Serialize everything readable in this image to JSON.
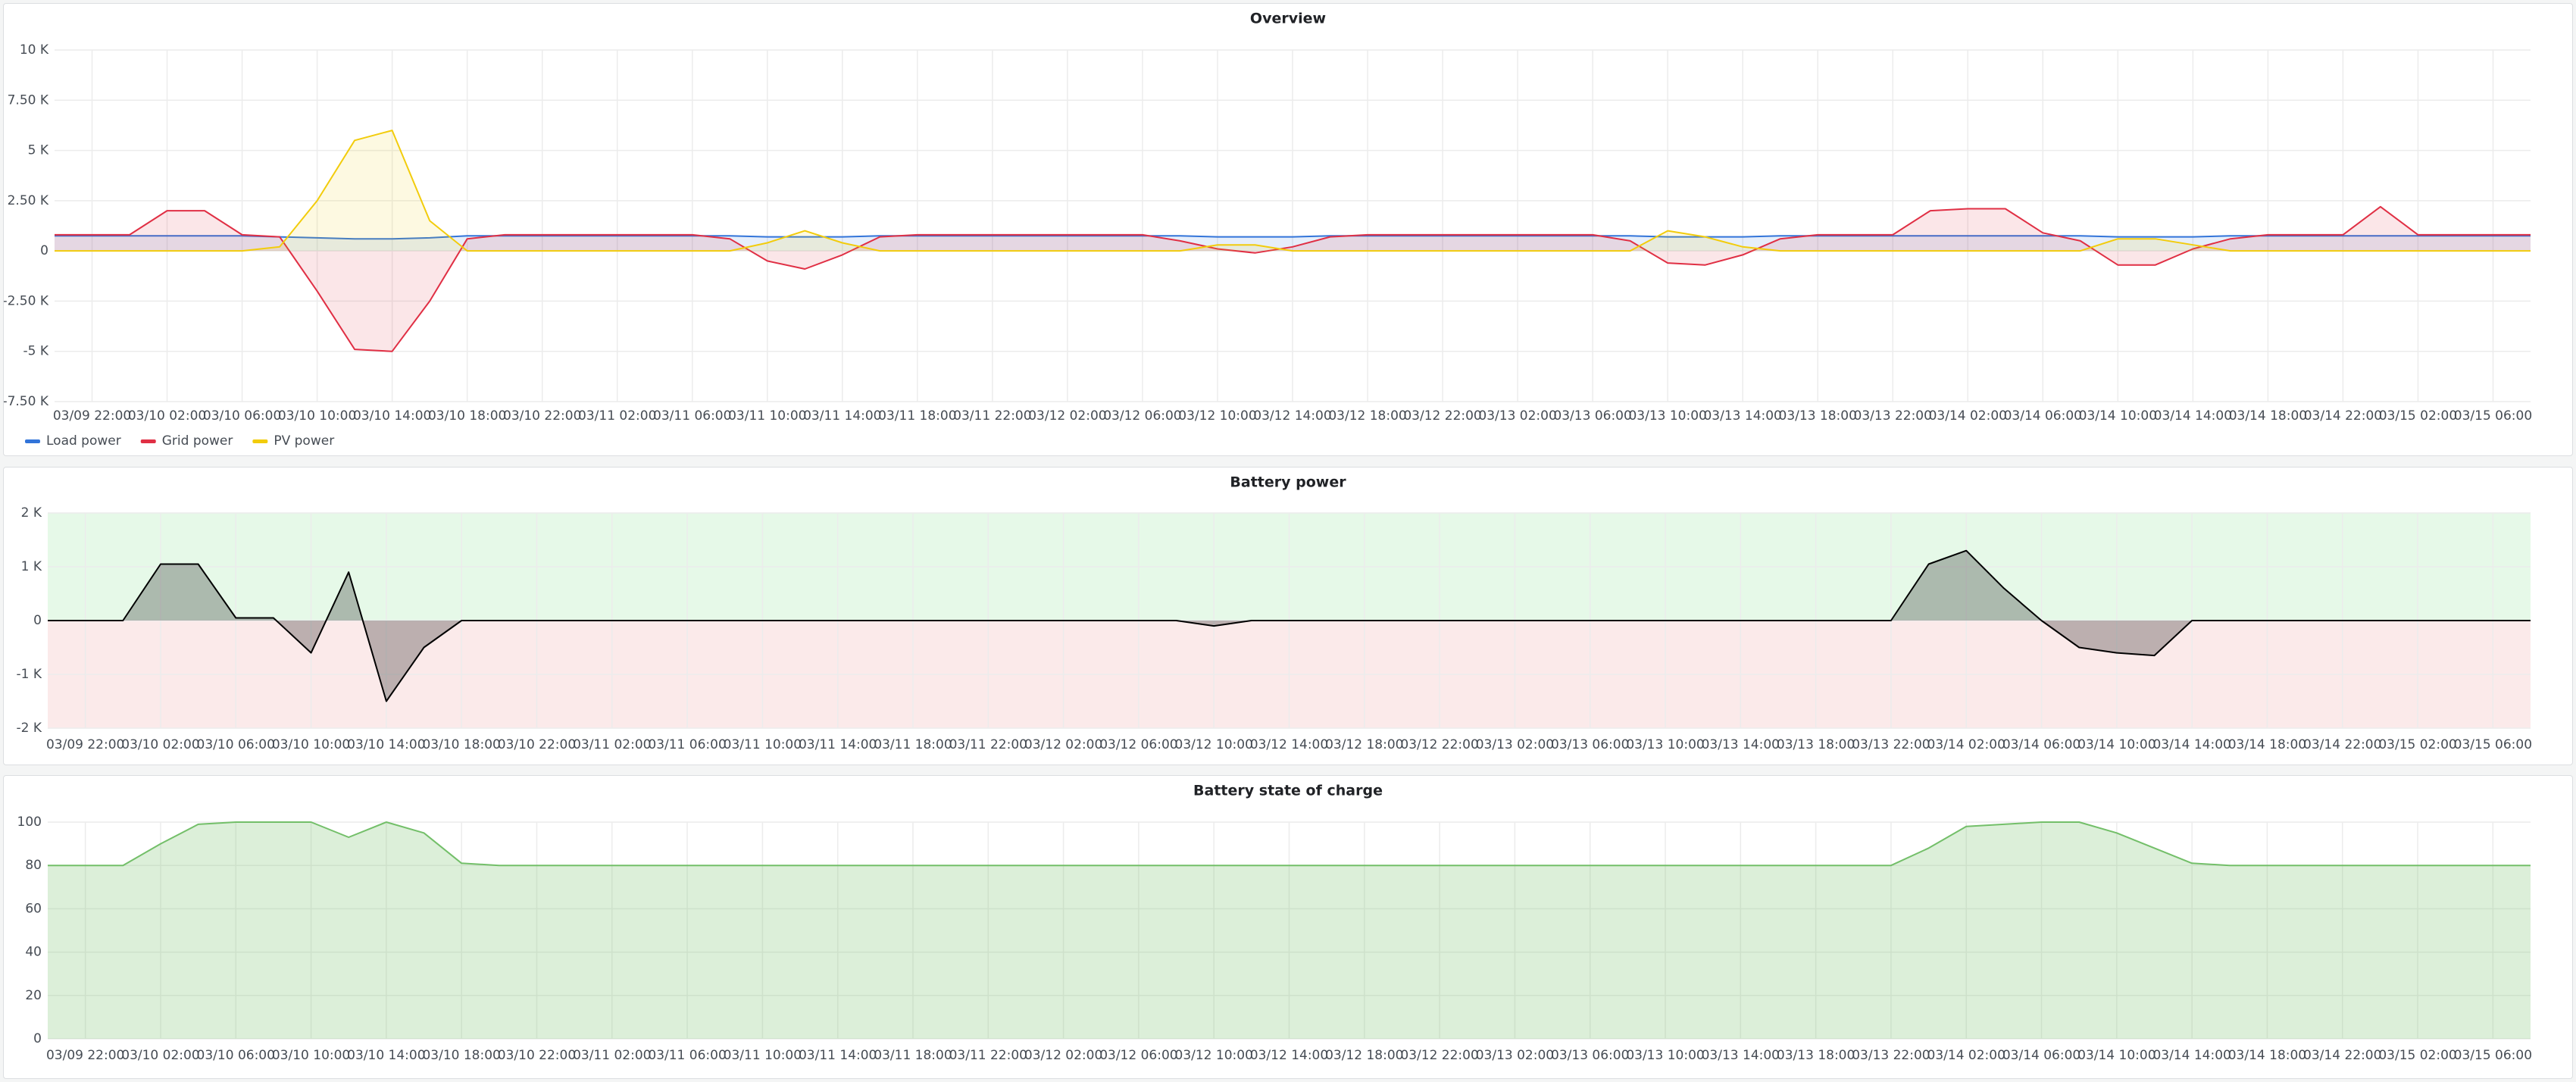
{
  "chart_data": [
    {
      "type": "area",
      "title": "Overview",
      "x": [
        "03/09 20:00",
        "03/09 22:00",
        "03/10 00:00",
        "03/10 02:00",
        "03/10 04:00",
        "03/10 06:00",
        "03/10 08:00",
        "03/10 10:00",
        "03/10 12:00",
        "03/10 14:00",
        "03/10 16:00",
        "03/10 18:00",
        "03/10 20:00",
        "03/10 22:00",
        "03/11 00:00",
        "03/11 02:00",
        "03/11 04:00",
        "03/11 06:00",
        "03/11 08:00",
        "03/11 10:00",
        "03/11 12:00",
        "03/11 14:00",
        "03/11 16:00",
        "03/11 18:00",
        "03/11 20:00",
        "03/11 22:00",
        "03/12 00:00",
        "03/12 02:00",
        "03/12 04:00",
        "03/12 06:00",
        "03/12 08:00",
        "03/12 10:00",
        "03/12 12:00",
        "03/12 14:00",
        "03/12 16:00",
        "03/12 18:00",
        "03/12 20:00",
        "03/12 22:00",
        "03/13 00:00",
        "03/13 02:00",
        "03/13 04:00",
        "03/13 06:00",
        "03/13 08:00",
        "03/13 10:00",
        "03/13 12:00",
        "03/13 14:00",
        "03/13 16:00",
        "03/13 18:00",
        "03/13 20:00",
        "03/13 22:00",
        "03/14 00:00",
        "03/14 02:00",
        "03/14 04:00",
        "03/14 06:00",
        "03/14 08:00",
        "03/14 10:00",
        "03/14 12:00",
        "03/14 14:00",
        "03/14 16:00",
        "03/14 18:00",
        "03/14 20:00",
        "03/14 22:00",
        "03/15 00:00",
        "03/15 02:00",
        "03/15 04:00",
        "03/15 06:00",
        "03/15 08:00"
      ],
      "xticks": [
        "03/09 22:00",
        "03/10 02:00",
        "03/10 06:00",
        "03/10 10:00",
        "03/10 14:00",
        "03/10 18:00",
        "03/10 22:00",
        "03/11 02:00",
        "03/11 06:00",
        "03/11 10:00",
        "03/11 14:00",
        "03/11 18:00",
        "03/11 22:00",
        "03/12 02:00",
        "03/12 06:00",
        "03/12 10:00",
        "03/12 14:00",
        "03/12 18:00",
        "03/12 22:00",
        "03/13 02:00",
        "03/13 06:00",
        "03/13 10:00",
        "03/13 14:00",
        "03/13 18:00",
        "03/13 22:00",
        "03/14 02:00",
        "03/14 06:00",
        "03/14 10:00",
        "03/14 14:00",
        "03/14 18:00",
        "03/14 22:00",
        "03/15 02:00",
        "03/15 06:00"
      ],
      "ylim": [
        -7500,
        10000
      ],
      "yticks": [
        {
          "value": 10000,
          "label": "10 K"
        },
        {
          "value": 7500,
          "label": "7.50 K"
        },
        {
          "value": 5000,
          "label": "5 K"
        },
        {
          "value": 2500,
          "label": "2.50 K"
        },
        0,
        {
          "value": -2500,
          "label": "-2.50 K"
        },
        {
          "value": -5000,
          "label": "-5 K"
        },
        {
          "value": -7500,
          "label": "-7.50 K"
        }
      ],
      "grid": true,
      "legend": "bottom-left",
      "fill_opacity": 0.12,
      "series": [
        {
          "name": "Load power",
          "color": "#3274d9",
          "values": [
            750,
            750,
            750,
            750,
            750,
            750,
            700,
            650,
            600,
            600,
            650,
            750,
            750,
            750,
            750,
            750,
            750,
            750,
            750,
            700,
            700,
            700,
            750,
            750,
            750,
            750,
            750,
            750,
            750,
            750,
            750,
            700,
            700,
            700,
            750,
            750,
            750,
            750,
            750,
            750,
            750,
            750,
            750,
            700,
            700,
            700,
            750,
            750,
            750,
            750,
            750,
            750,
            750,
            750,
            750,
            700,
            700,
            700,
            750,
            750,
            750,
            750,
            750,
            750,
            750,
            750,
            750
          ]
        },
        {
          "name": "Grid power",
          "color": "#e02f44",
          "values": [
            800,
            800,
            800,
            2000,
            2000,
            800,
            700,
            -2000,
            -4900,
            -5000,
            -2500,
            600,
            800,
            800,
            800,
            800,
            800,
            800,
            600,
            -500,
            -900,
            -200,
            700,
            800,
            800,
            800,
            800,
            800,
            800,
            800,
            500,
            100,
            -100,
            200,
            700,
            800,
            800,
            800,
            800,
            800,
            800,
            800,
            500,
            -600,
            -700,
            -200,
            600,
            800,
            800,
            800,
            2000,
            2100,
            2100,
            900,
            500,
            -700,
            -700,
            100,
            600,
            800,
            800,
            800,
            2200,
            800,
            800,
            800,
            800
          ]
        },
        {
          "name": "PV power",
          "color": "#f2cc0c",
          "values": [
            0,
            0,
            0,
            0,
            0,
            0,
            200,
            2500,
            5500,
            6000,
            1500,
            0,
            0,
            0,
            0,
            0,
            0,
            0,
            0,
            400,
            1000,
            400,
            0,
            0,
            0,
            0,
            0,
            0,
            0,
            0,
            0,
            300,
            300,
            0,
            0,
            0,
            0,
            0,
            0,
            0,
            0,
            0,
            0,
            1000,
            700,
            200,
            0,
            0,
            0,
            0,
            0,
            0,
            0,
            0,
            0,
            600,
            600,
            300,
            0,
            0,
            0,
            0,
            0,
            0,
            0,
            0,
            0
          ]
        }
      ]
    },
    {
      "type": "area",
      "title": "Battery power",
      "x": [
        "03/09 20:00",
        "03/09 22:00",
        "03/10 00:00",
        "03/10 02:00",
        "03/10 04:00",
        "03/10 06:00",
        "03/10 08:00",
        "03/10 10:00",
        "03/10 12:00",
        "03/10 14:00",
        "03/10 16:00",
        "03/10 18:00",
        "03/10 20:00",
        "03/10 22:00",
        "03/11 00:00",
        "03/11 02:00",
        "03/11 04:00",
        "03/11 06:00",
        "03/11 08:00",
        "03/11 10:00",
        "03/11 12:00",
        "03/11 14:00",
        "03/11 16:00",
        "03/11 18:00",
        "03/11 20:00",
        "03/11 22:00",
        "03/12 00:00",
        "03/12 02:00",
        "03/12 04:00",
        "03/12 06:00",
        "03/12 08:00",
        "03/12 10:00",
        "03/12 12:00",
        "03/12 14:00",
        "03/12 16:00",
        "03/12 18:00",
        "03/12 20:00",
        "03/12 22:00",
        "03/13 00:00",
        "03/13 02:00",
        "03/13 04:00",
        "03/13 06:00",
        "03/13 08:00",
        "03/13 10:00",
        "03/13 12:00",
        "03/13 14:00",
        "03/13 16:00",
        "03/13 18:00",
        "03/13 20:00",
        "03/13 22:00",
        "03/14 00:00",
        "03/14 02:00",
        "03/14 04:00",
        "03/14 06:00",
        "03/14 08:00",
        "03/14 10:00",
        "03/14 12:00",
        "03/14 14:00",
        "03/14 16:00",
        "03/14 18:00",
        "03/14 20:00",
        "03/14 22:00",
        "03/15 00:00",
        "03/15 02:00",
        "03/15 04:00",
        "03/15 06:00",
        "03/15 08:00"
      ],
      "xticks": [
        "03/09 22:00",
        "03/10 02:00",
        "03/10 06:00",
        "03/10 10:00",
        "03/10 14:00",
        "03/10 18:00",
        "03/10 22:00",
        "03/11 02:00",
        "03/11 06:00",
        "03/11 10:00",
        "03/11 14:00",
        "03/11 18:00",
        "03/11 22:00",
        "03/12 02:00",
        "03/12 06:00",
        "03/12 10:00",
        "03/12 14:00",
        "03/12 18:00",
        "03/12 22:00",
        "03/13 02:00",
        "03/13 06:00",
        "03/13 10:00",
        "03/13 14:00",
        "03/13 18:00",
        "03/13 22:00",
        "03/14 02:00",
        "03/14 06:00",
        "03/14 10:00",
        "03/14 14:00",
        "03/14 18:00",
        "03/14 22:00",
        "03/15 02:00",
        "03/15 06:00"
      ],
      "ylim": [
        -2000,
        2000
      ],
      "yticks": [
        {
          "value": 2000,
          "label": "2 K"
        },
        {
          "value": 1000,
          "label": "1 K"
        },
        0,
        {
          "value": -1000,
          "label": "-1 K"
        },
        {
          "value": -2000,
          "label": "-2 K"
        }
      ],
      "grid": true,
      "fill_opacity": 0.25,
      "background_above": "#e6f9e8",
      "background_below": "#fbeaea",
      "series": [
        {
          "color": "#000000",
          "values": [
            0,
            0,
            0,
            1050,
            1050,
            50,
            50,
            -600,
            900,
            -1500,
            -500,
            0,
            0,
            0,
            0,
            0,
            0,
            0,
            0,
            0,
            0,
            0,
            0,
            0,
            0,
            0,
            0,
            0,
            0,
            0,
            0,
            -100,
            0,
            0,
            0,
            0,
            0,
            0,
            0,
            0,
            0,
            0,
            0,
            0,
            0,
            0,
            0,
            0,
            0,
            0,
            1050,
            1300,
            600,
            0,
            -500,
            -600,
            -650,
            0,
            0,
            0,
            0,
            0,
            0,
            0,
            0,
            0,
            0
          ]
        }
      ]
    },
    {
      "type": "area",
      "title": "Battery state of charge",
      "x": [
        "03/09 20:00",
        "03/09 22:00",
        "03/10 00:00",
        "03/10 02:00",
        "03/10 04:00",
        "03/10 06:00",
        "03/10 08:00",
        "03/10 10:00",
        "03/10 12:00",
        "03/10 14:00",
        "03/10 16:00",
        "03/10 18:00",
        "03/10 20:00",
        "03/10 22:00",
        "03/11 00:00",
        "03/11 02:00",
        "03/11 04:00",
        "03/11 06:00",
        "03/11 08:00",
        "03/11 10:00",
        "03/11 12:00",
        "03/11 14:00",
        "03/11 16:00",
        "03/11 18:00",
        "03/11 20:00",
        "03/11 22:00",
        "03/12 00:00",
        "03/12 02:00",
        "03/12 04:00",
        "03/12 06:00",
        "03/12 08:00",
        "03/12 10:00",
        "03/12 12:00",
        "03/12 14:00",
        "03/12 16:00",
        "03/12 18:00",
        "03/12 20:00",
        "03/12 22:00",
        "03/13 00:00",
        "03/13 02:00",
        "03/13 04:00",
        "03/13 06:00",
        "03/13 08:00",
        "03/13 10:00",
        "03/13 12:00",
        "03/13 14:00",
        "03/13 16:00",
        "03/13 18:00",
        "03/13 20:00",
        "03/13 22:00",
        "03/14 00:00",
        "03/14 02:00",
        "03/14 04:00",
        "03/14 06:00",
        "03/14 08:00",
        "03/14 10:00",
        "03/14 12:00",
        "03/14 14:00",
        "03/14 16:00",
        "03/14 18:00",
        "03/14 20:00",
        "03/14 22:00",
        "03/15 00:00",
        "03/15 02:00",
        "03/15 04:00",
        "03/15 06:00",
        "03/15 08:00"
      ],
      "xticks": [
        "03/09 22:00",
        "03/10 02:00",
        "03/10 06:00",
        "03/10 10:00",
        "03/10 14:00",
        "03/10 18:00",
        "03/10 22:00",
        "03/11 02:00",
        "03/11 06:00",
        "03/11 10:00",
        "03/11 14:00",
        "03/11 18:00",
        "03/11 22:00",
        "03/12 02:00",
        "03/12 06:00",
        "03/12 10:00",
        "03/12 14:00",
        "03/12 18:00",
        "03/12 22:00",
        "03/13 02:00",
        "03/13 06:00",
        "03/13 10:00",
        "03/13 14:00",
        "03/13 18:00",
        "03/13 22:00",
        "03/14 02:00",
        "03/14 06:00",
        "03/14 10:00",
        "03/14 14:00",
        "03/14 18:00",
        "03/14 22:00",
        "03/15 02:00",
        "03/15 06:00"
      ],
      "ylim": [
        0,
        100
      ],
      "yticks": [
        0,
        20,
        40,
        60,
        80,
        100
      ],
      "grid": true,
      "fill_opacity": 0.25,
      "series": [
        {
          "color": "#73bf69",
          "values": [
            80,
            80,
            80,
            90,
            99,
            100,
            100,
            100,
            93,
            100,
            95,
            81,
            80,
            80,
            80,
            80,
            80,
            80,
            80,
            80,
            80,
            80,
            80,
            80,
            80,
            80,
            80,
            80,
            80,
            80,
            80,
            80,
            80,
            80,
            80,
            80,
            80,
            80,
            80,
            80,
            80,
            80,
            80,
            80,
            80,
            80,
            80,
            80,
            80,
            80,
            88,
            98,
            99,
            100,
            100,
            95,
            88,
            81,
            80,
            80,
            80,
            80,
            80,
            80,
            80,
            80,
            80
          ]
        }
      ]
    }
  ]
}
